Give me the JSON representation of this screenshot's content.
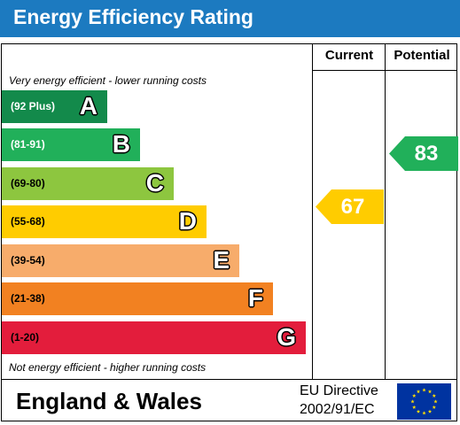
{
  "header": {
    "title": "Energy Efficiency Rating",
    "color": "#1c7ac0"
  },
  "columns": {
    "current": "Current",
    "potential": "Potential"
  },
  "notes": {
    "top": "Very energy efficient - lower running costs",
    "bottom": "Not energy efficient - higher running costs"
  },
  "chart_data": {
    "type": "bar",
    "title": "Energy Efficiency Rating",
    "categories": [
      "A",
      "B",
      "C",
      "D",
      "E",
      "F",
      "G"
    ],
    "bands": [
      {
        "letter": "A",
        "range": "(92 Plus)",
        "color": "#138a4b",
        "range_text_color": "#ffffff"
      },
      {
        "letter": "B",
        "range": "(81-91)",
        "color": "#21b05a",
        "range_text_color": "#ffffff"
      },
      {
        "letter": "C",
        "range": "(69-80)",
        "color": "#8dc63f",
        "range_text_color": "#000000"
      },
      {
        "letter": "D",
        "range": "(55-68)",
        "color": "#ffcc00",
        "range_text_color": "#000000"
      },
      {
        "letter": "E",
        "range": "(39-54)",
        "color": "#f7ac6b",
        "range_text_color": "#000000"
      },
      {
        "letter": "F",
        "range": "(21-38)",
        "color": "#f28121",
        "range_text_color": "#000000"
      },
      {
        "letter": "G",
        "range": "(1-20)",
        "color": "#e31d3c",
        "range_text_color": "#000000"
      }
    ],
    "ratings": {
      "current": {
        "value": 67,
        "band": "D",
        "color": "#ffcc00"
      },
      "potential": {
        "value": 83,
        "band": "B",
        "color": "#21b05a"
      }
    }
  },
  "footer": {
    "region": "England & Wales",
    "directive_line1": "EU Directive",
    "directive_line2": "2002/91/EC",
    "flag_colors": {
      "background": "#0033a0",
      "stars": "#ffdd00"
    }
  }
}
